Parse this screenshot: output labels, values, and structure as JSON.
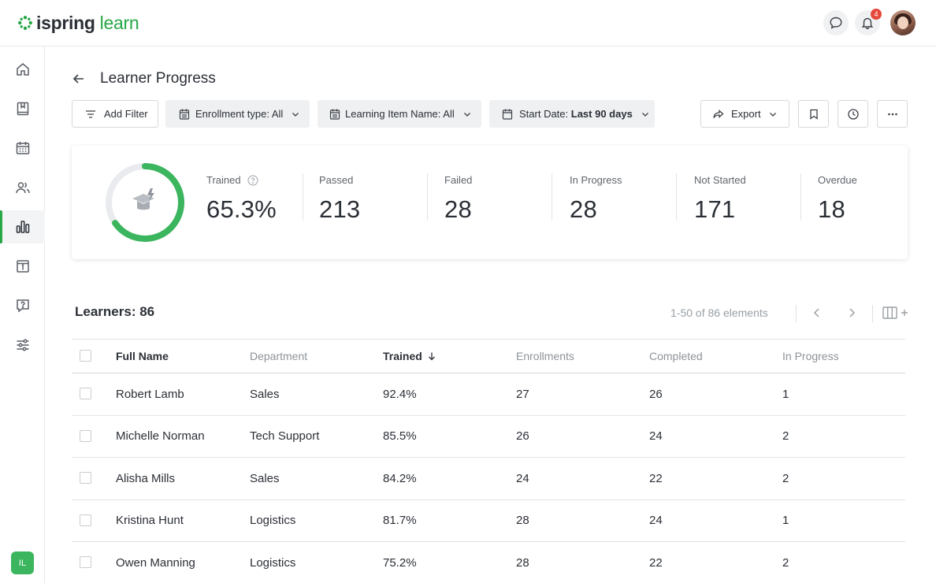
{
  "app": {
    "logo_part1": "ispring",
    "logo_part2": "learn",
    "notification_count": "4",
    "user_initials": "IL",
    "brand_color": "#28a745"
  },
  "sidebar": {
    "items": [
      {
        "icon": "home-icon"
      },
      {
        "icon": "book-icon"
      },
      {
        "icon": "calendar-icon"
      },
      {
        "icon": "users-icon"
      },
      {
        "icon": "reports-icon",
        "active": true
      },
      {
        "icon": "info-board-icon"
      },
      {
        "icon": "question-icon"
      },
      {
        "icon": "settings-sliders-icon"
      }
    ]
  },
  "page": {
    "title": "Learner Progress"
  },
  "toolbar": {
    "add_filter": "Add Filter",
    "enrollment_label": "Enrollment type: All",
    "learning_item_label": "Learning Item Name: All",
    "start_date_prefix": "Start Date:",
    "start_date_value": "Last 90 days",
    "export_label": "Export"
  },
  "stats": {
    "trained_percent": 65.3,
    "trained_label": "Trained",
    "trained_value": "65.3%",
    "items": [
      {
        "label": "Passed",
        "value": "213"
      },
      {
        "label": "Failed",
        "value": "28"
      },
      {
        "label": "In Progress",
        "value": "28"
      },
      {
        "label": "Not Started",
        "value": "171"
      },
      {
        "label": "Overdue",
        "value": "18"
      }
    ]
  },
  "learners": {
    "label": "Learners:",
    "count": "86",
    "pagination": "1-50 of 86 elements"
  },
  "table": {
    "columns": [
      "Full Name",
      "Department",
      "Trained",
      "Enrollments",
      "Completed",
      "In Progress"
    ],
    "rows": [
      [
        "Robert Lamb",
        "Sales",
        "92.4%",
        "27",
        "26",
        "1"
      ],
      [
        "Michelle Norman",
        "Tech Support",
        "85.5%",
        "26",
        "24",
        "2"
      ],
      [
        "Alisha Mills",
        "Sales",
        "84.2%",
        "24",
        "22",
        "2"
      ],
      [
        "Kristina Hunt",
        "Logistics",
        "81.7%",
        "28",
        "24",
        "1"
      ],
      [
        "Owen Manning",
        "Logistics",
        "75.2%",
        "28",
        "22",
        "2"
      ]
    ]
  }
}
